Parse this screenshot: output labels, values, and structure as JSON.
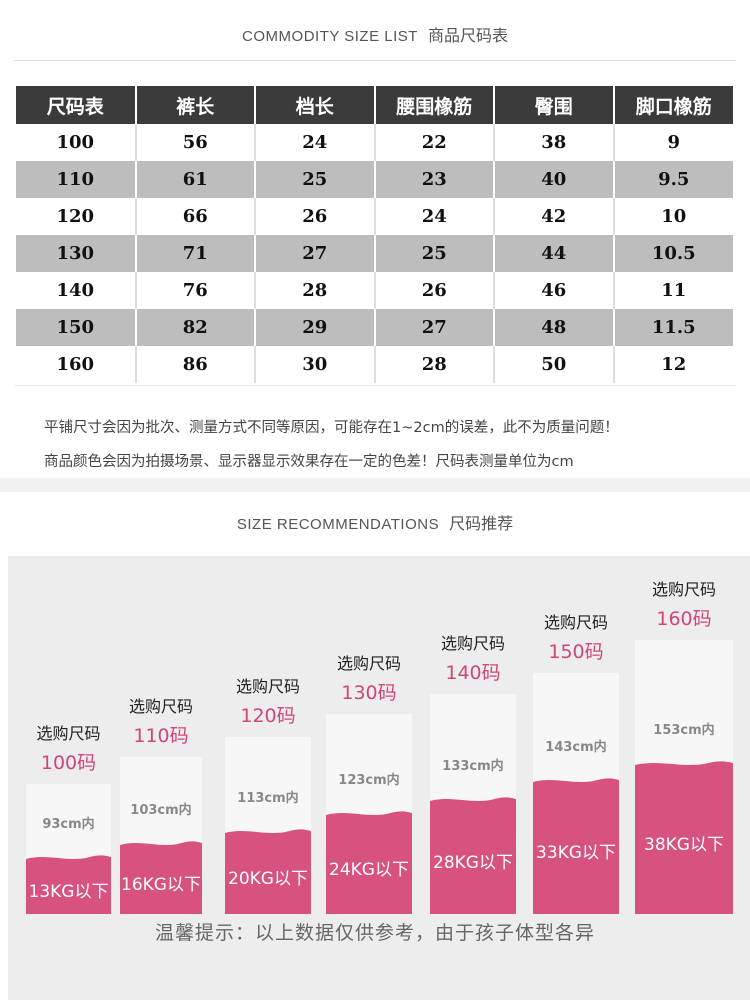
{
  "size_list": {
    "title_en": "COMMODITY SIZE LIST",
    "title_zh": "商品尺码表",
    "headers": [
      "尺码表",
      "裤长",
      "档长",
      "腰围橡筋",
      "臀围",
      "脚口橡筋"
    ],
    "rows": [
      [
        "100",
        "56",
        "24",
        "22",
        "38",
        "9"
      ],
      [
        "110",
        "61",
        "25",
        "23",
        "40",
        "9.5"
      ],
      [
        "120",
        "66",
        "26",
        "24",
        "42",
        "10"
      ],
      [
        "130",
        "71",
        "27",
        "25",
        "44",
        "10.5"
      ],
      [
        "140",
        "76",
        "28",
        "26",
        "46",
        "11"
      ],
      [
        "150",
        "82",
        "29",
        "27",
        "48",
        "11.5"
      ],
      [
        "160",
        "86",
        "30",
        "28",
        "50",
        "12"
      ]
    ],
    "note1": "平铺尺寸会因为批次、测量方式不同等原因，可能存在1~2cm的误差，此不为质量问题！",
    "note2": "商品颜色会因为拍摄场景、显示器显示效果存在一定的色差！尺码表测量单位为cm"
  },
  "recommendations": {
    "title_en": "SIZE RECOMMENDATIONS",
    "title_zh": "尺码推荐",
    "columns": [
      {
        "label": "选购尺码",
        "size": "100码",
        "height": "93cm内",
        "weight": "13KG以下"
      },
      {
        "label": "选购尺码",
        "size": "110码",
        "height": "103cm内",
        "weight": "16KG以下"
      },
      {
        "label": "选购尺码",
        "size": "120码",
        "height": "113cm内",
        "weight": "20KG以下"
      },
      {
        "label": "选购尺码",
        "size": "130码",
        "height": "123cm内",
        "weight": "24KG以下"
      },
      {
        "label": "选购尺码",
        "size": "140码",
        "height": "133cm内",
        "weight": "28KG以下"
      },
      {
        "label": "选购尺码",
        "size": "150码",
        "height": "143cm内",
        "weight": "33KG以下"
      },
      {
        "label": "选购尺码",
        "size": "160码",
        "height": "153cm内",
        "weight": "38KG以下"
      }
    ],
    "tip": "温馨提示：以上数据仅供参考，由于孩子体型各异"
  },
  "colors": {
    "accent": "#d0457a",
    "fill": "#d8527f",
    "header_bg": "#3b3b3b",
    "stripe": "#bdbdbd"
  }
}
